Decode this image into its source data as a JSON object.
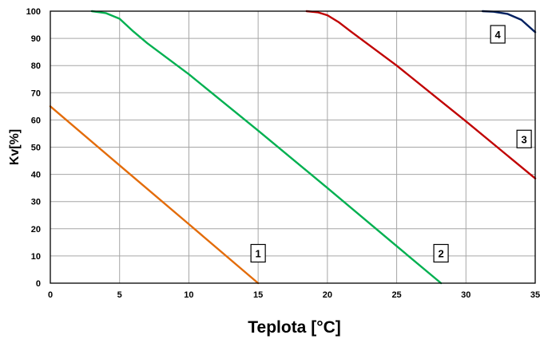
{
  "chart_data": {
    "type": "line",
    "xlabel": "Teplota [°C]",
    "ylabel": "Kv[%]",
    "xlim": [
      0,
      35
    ],
    "ylim": [
      0,
      100
    ],
    "x_ticks": [
      0,
      5,
      10,
      15,
      20,
      25,
      30,
      35
    ],
    "y_ticks": [
      0,
      10,
      20,
      30,
      40,
      50,
      60,
      70,
      80,
      90,
      100
    ],
    "grid": true,
    "series": [
      {
        "name": "1",
        "color": "#e36c0a",
        "label_at": {
          "x": 15.0,
          "y": 11
        },
        "points": [
          [
            0,
            65
          ],
          [
            5,
            43.3
          ],
          [
            10,
            21.7
          ],
          [
            15,
            0
          ]
        ]
      },
      {
        "name": "2",
        "color": "#00b050",
        "label_at": {
          "x": 28.2,
          "y": 11
        },
        "points": [
          [
            3,
            100
          ],
          [
            4,
            99.3
          ],
          [
            5,
            97.2
          ],
          [
            6,
            92.5
          ],
          [
            7,
            88.2
          ],
          [
            10,
            76.8
          ],
          [
            15,
            56.1
          ],
          [
            20,
            35.0
          ],
          [
            25,
            13.6
          ],
          [
            28.2,
            0
          ]
        ]
      },
      {
        "name": "3",
        "color": "#c00000",
        "label_at": {
          "x": 34.2,
          "y": 53
        },
        "points": [
          [
            18.5,
            100
          ],
          [
            19.3,
            99.6
          ],
          [
            20,
            98.5
          ],
          [
            20.8,
            96.0
          ],
          [
            21.7,
            92.5
          ],
          [
            25,
            80.0
          ],
          [
            30,
            59.5
          ],
          [
            35,
            38.5
          ]
        ]
      },
      {
        "name": "4",
        "color": "#002060",
        "label_at": {
          "x": 32.3,
          "y": 91.5
        },
        "points": [
          [
            31.2,
            100
          ],
          [
            32,
            99.8
          ],
          [
            33,
            99.0
          ],
          [
            34,
            96.8
          ],
          [
            35,
            92.3
          ]
        ]
      }
    ]
  }
}
